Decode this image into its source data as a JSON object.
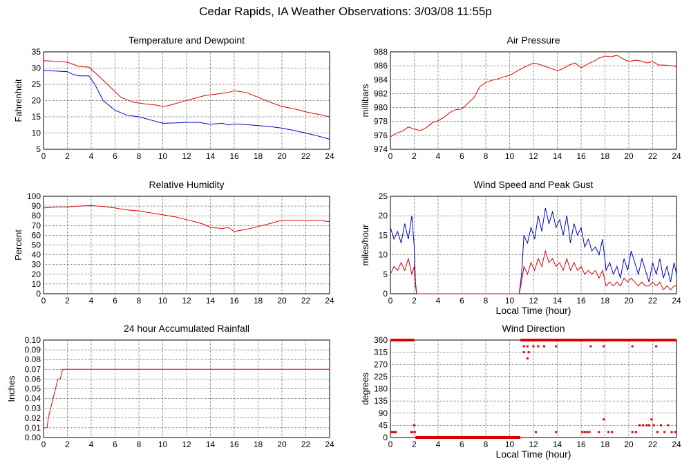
{
  "page_title": "Cedar Rapids, IA Weather Observations: 3/03/08 11:55p",
  "colors": {
    "red": "#dd0000",
    "blue": "#0000cc",
    "grid": "#000000",
    "background": "#ffffff"
  },
  "chart_data": [
    {
      "id": "temp",
      "type": "line",
      "title": "Temperature and Dewpoint",
      "xlabel": "",
      "ylabel": "Fahrenheit",
      "xlim": [
        0,
        24
      ],
      "ylim": [
        5,
        35
      ],
      "xticks": [
        0,
        2,
        4,
        6,
        8,
        10,
        12,
        14,
        16,
        18,
        20,
        22,
        24
      ],
      "yticks": [
        5,
        10,
        15,
        20,
        25,
        30,
        35
      ],
      "grid": true,
      "series": [
        {
          "color": "#dd0000",
          "x": [
            0,
            1,
            2,
            3,
            3.8,
            4.5,
            5.5,
            6.5,
            7.5,
            8.5,
            9.5,
            10,
            10.5,
            11.5,
            12.5,
            13.5,
            14.5,
            15.5,
            16,
            17,
            18,
            19,
            20,
            21,
            22,
            23,
            24
          ],
          "y": [
            32.3,
            32.1,
            31.8,
            30.5,
            30.3,
            28,
            24.5,
            21,
            19.5,
            19,
            18.6,
            18.2,
            18.5,
            19.5,
            20.5,
            21.5,
            22,
            22.5,
            23,
            22.5,
            21,
            19.5,
            18.2,
            17.5,
            16.5,
            15.8,
            15
          ]
        },
        {
          "color": "#0000cc",
          "x": [
            0,
            1,
            2,
            2.5,
            3,
            3.8,
            4.3,
            5,
            6,
            7,
            8,
            9,
            10,
            11,
            12,
            13,
            14,
            15,
            15.5,
            16,
            17,
            18,
            19,
            20,
            21,
            22,
            23,
            24
          ],
          "y": [
            29.2,
            29.1,
            28.9,
            28,
            27.6,
            27.6,
            25,
            20,
            17,
            15.5,
            15,
            14,
            13,
            13.1,
            13.3,
            13.3,
            12.7,
            13,
            12.5,
            12.8,
            12.6,
            12.3,
            12,
            11.5,
            10.8,
            10,
            9.1,
            8.1
          ]
        }
      ]
    },
    {
      "id": "pressure",
      "type": "line",
      "title": "Air Pressure",
      "xlabel": "",
      "ylabel": "millibars",
      "xlim": [
        0,
        24
      ],
      "ylim": [
        974,
        988
      ],
      "xticks": [
        0,
        2,
        4,
        6,
        8,
        10,
        12,
        14,
        16,
        18,
        20,
        22,
        24
      ],
      "yticks": [
        974,
        976,
        978,
        980,
        982,
        984,
        986,
        988
      ],
      "grid": true,
      "series": [
        {
          "color": "#dd0000",
          "x": [
            0,
            0.5,
            1,
            1.5,
            2,
            2.5,
            3,
            3.5,
            4,
            4.5,
            5,
            5.5,
            6,
            6.5,
            7,
            7.5,
            8,
            8.5,
            9,
            9.5,
            10,
            10.5,
            11,
            11.5,
            12,
            12.5,
            13,
            13.5,
            14,
            14.5,
            15,
            15.5,
            16,
            16.5,
            17,
            17.5,
            18,
            18.5,
            19,
            19.5,
            20,
            20.5,
            21,
            21.5,
            22,
            22.5,
            23,
            23.5,
            24
          ],
          "y": [
            975.8,
            976.3,
            976.6,
            977.2,
            976.9,
            976.7,
            977.1,
            977.8,
            978.1,
            978.6,
            979.3,
            979.7,
            979.8,
            980.6,
            981.4,
            983,
            983.6,
            983.9,
            984.1,
            984.4,
            984.6,
            985.1,
            985.6,
            986,
            986.4,
            986.2,
            985.9,
            985.6,
            985.3,
            985.6,
            986.1,
            986.4,
            985.7,
            986.2,
            986.6,
            987.1,
            987.4,
            987.3,
            987.5,
            987,
            986.6,
            986.8,
            986.7,
            986.4,
            986.6,
            986.1,
            986.1,
            986,
            985.9
          ]
        }
      ]
    },
    {
      "id": "humidity",
      "type": "line",
      "title": "Relative Humidity",
      "xlabel": "",
      "ylabel": "Percent",
      "xlim": [
        0,
        24
      ],
      "ylim": [
        0,
        100
      ],
      "xticks": [
        0,
        2,
        4,
        6,
        8,
        10,
        12,
        14,
        16,
        18,
        20,
        22,
        24
      ],
      "yticks": [
        0,
        10,
        20,
        30,
        40,
        50,
        60,
        70,
        80,
        90,
        100
      ],
      "grid": true,
      "series": [
        {
          "color": "#dd0000",
          "x": [
            0,
            1,
            2,
            3,
            4,
            5,
            6,
            7,
            8,
            9,
            10,
            11,
            12,
            13,
            13.5,
            14,
            15,
            15.5,
            16,
            16.5,
            17,
            18,
            19,
            20,
            21,
            22,
            23,
            24
          ],
          "y": [
            88,
            89,
            89,
            90,
            90.5,
            89.5,
            88,
            86,
            85,
            83,
            81,
            79,
            76,
            73,
            71,
            68,
            67,
            68,
            64,
            65,
            66,
            69,
            72,
            75.5,
            75.5,
            75.5,
            75.5,
            74
          ]
        }
      ]
    },
    {
      "id": "wind",
      "type": "line",
      "title": "Wind Speed and Peak Gust",
      "xlabel": "Local Time (hour)",
      "ylabel": "miles/hour",
      "xlim": [
        0,
        24
      ],
      "ylim": [
        0,
        25
      ],
      "xticks": [
        0,
        2,
        4,
        6,
        8,
        10,
        12,
        14,
        16,
        18,
        20,
        22,
        24
      ],
      "yticks": [
        0,
        5,
        10,
        15,
        20,
        25
      ],
      "grid": true,
      "series": [
        {
          "color": "#0000cc",
          "x": [
            0,
            0.3,
            0.6,
            0.9,
            1.2,
            1.5,
            1.8,
            2,
            2.1,
            2.2,
            10.8,
            11,
            11.2,
            11.5,
            11.8,
            12.1,
            12.4,
            12.7,
            13,
            13.3,
            13.6,
            13.9,
            14.2,
            14.5,
            14.8,
            15.1,
            15.4,
            15.7,
            16,
            16.3,
            16.6,
            16.9,
            17.2,
            17.5,
            17.8,
            18.1,
            18.4,
            18.7,
            19,
            19.3,
            19.6,
            19.9,
            20.2,
            20.5,
            20.8,
            21.1,
            21.4,
            21.7,
            22,
            22.3,
            22.6,
            22.9,
            23.2,
            23.5,
            23.8,
            24
          ],
          "y": [
            17,
            14,
            16,
            13,
            18,
            14,
            20,
            12,
            3,
            0,
            0,
            5,
            15,
            13,
            17,
            14,
            20,
            16,
            22,
            18,
            21,
            17,
            19,
            15,
            20,
            13,
            18,
            15,
            17,
            12,
            14,
            11,
            12,
            10,
            14,
            6,
            8,
            5,
            7,
            4,
            9,
            6,
            11,
            8,
            5,
            9,
            6,
            3,
            8,
            5,
            9,
            4,
            7,
            3,
            8,
            5
          ]
        },
        {
          "color": "#dd0000",
          "x": [
            0,
            0.3,
            0.6,
            0.9,
            1.2,
            1.5,
            1.8,
            2,
            2.1,
            2.2,
            10.8,
            11,
            11.2,
            11.5,
            11.8,
            12.1,
            12.4,
            12.7,
            13,
            13.3,
            13.6,
            13.9,
            14.2,
            14.5,
            14.8,
            15.1,
            15.4,
            15.7,
            16,
            16.3,
            16.6,
            16.9,
            17.2,
            17.5,
            17.8,
            18.1,
            18.4,
            18.7,
            19,
            19.3,
            19.6,
            19.9,
            20.2,
            20.5,
            20.8,
            21.1,
            21.4,
            21.7,
            22,
            22.3,
            22.6,
            22.9,
            23.2,
            23.5,
            23.8,
            24
          ],
          "y": [
            5,
            7,
            6,
            8,
            6,
            9,
            5,
            7,
            2,
            0,
            0,
            3,
            7,
            5,
            8,
            6,
            9,
            7,
            11,
            8,
            9,
            7,
            8,
            6,
            9,
            6,
            8,
            6,
            7,
            5,
            6,
            5,
            6,
            4,
            6,
            2,
            3,
            2,
            3,
            2,
            4,
            3,
            4,
            3,
            2,
            3,
            2,
            2,
            3,
            2,
            3,
            1,
            2,
            1,
            2,
            2
          ]
        }
      ]
    },
    {
      "id": "rainfall",
      "type": "line",
      "title": "24 hour Accumulated Rainfall",
      "xlabel": "",
      "ylabel": "Inches",
      "xlim": [
        0,
        24
      ],
      "ylim": [
        0,
        0.1
      ],
      "xticks": [
        0,
        2,
        4,
        6,
        8,
        10,
        12,
        14,
        16,
        18,
        20,
        22,
        24
      ],
      "yticks": [
        0.0,
        0.01,
        0.02,
        0.03,
        0.04,
        0.05,
        0.06,
        0.07,
        0.08,
        0.09,
        0.1
      ],
      "yticklabels": [
        "0.00",
        "0.01",
        "0.02",
        "0.03",
        "0.04",
        "0.05",
        "0.06",
        "0.07",
        "0.08",
        "0.09",
        "0.10"
      ],
      "grid": true,
      "series": [
        {
          "color": "#dd0000",
          "x": [
            0,
            0.3,
            0.4,
            0.6,
            0.8,
            1.0,
            1.2,
            1.4,
            1.6,
            24
          ],
          "y": [
            0.01,
            0.01,
            0.02,
            0.03,
            0.04,
            0.05,
            0.06,
            0.06,
            0.07,
            0.07
          ]
        }
      ]
    },
    {
      "id": "direction",
      "type": "scatter",
      "title": "Wind Direction",
      "xlabel": "Local Time (hour)",
      "ylabel": "degrees",
      "xlim": [
        0,
        24
      ],
      "ylim": [
        0,
        360
      ],
      "xticks": [
        0,
        2,
        4,
        6,
        8,
        10,
        12,
        14,
        16,
        18,
        20,
        22,
        24
      ],
      "yticks": [
        0,
        45,
        90,
        135,
        180,
        225,
        270,
        315,
        360
      ],
      "grid": true,
      "series": [
        {
          "color": "#dd0000",
          "x": [
            0.05,
            0.15,
            0.25,
            0.35,
            0.45,
            1.75,
            1.85,
            2.0,
            2.05,
            11.2,
            11.5,
            11.6,
            12.2,
            13.9,
            16.1,
            16.3,
            16.5,
            16.7,
            17.5,
            17.9,
            18.3,
            18.6,
            20.3,
            20.6,
            20.9,
            21.2,
            21.5,
            21.7,
            21.9,
            22.1,
            22.4,
            22.7,
            23.0,
            23.3,
            23.6,
            23.9,
            11.2,
            11.5,
            12.0,
            12.4,
            12.9,
            13.9,
            16.8,
            17.9,
            20.3,
            22.3
          ],
          "y": [
            20,
            20,
            20,
            20,
            20,
            20,
            20,
            45,
            20,
            315,
            292,
            315,
            20,
            20,
            20,
            20,
            20,
            20,
            20,
            67,
            20,
            20,
            20,
            20,
            45,
            45,
            45,
            45,
            67,
            45,
            20,
            45,
            20,
            45,
            20,
            20,
            337,
            337,
            337,
            337,
            337,
            337,
            337,
            337,
            337,
            337
          ]
        }
      ],
      "bands": [
        {
          "color": "#dd0000",
          "y": 360,
          "x0": 0,
          "x1": 2.0
        },
        {
          "color": "#dd0000",
          "y": 360,
          "x0": 10.9,
          "x1": 24
        },
        {
          "color": "#dd0000",
          "y": 0,
          "x0": 2.1,
          "x1": 10.9
        }
      ]
    }
  ]
}
